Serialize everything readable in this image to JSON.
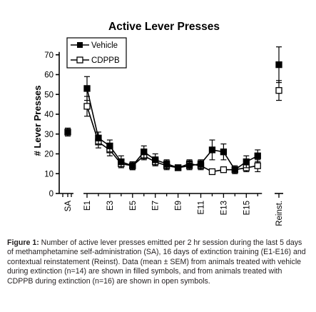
{
  "chart_data": {
    "type": "line",
    "title": "Active Lever Presses",
    "ylabel": "# Lever Presses",
    "xlabel": "",
    "ylim": [
      0,
      70
    ],
    "yticks": [
      0,
      10,
      20,
      30,
      40,
      50,
      60,
      70
    ],
    "xtick_labels": [
      "SA",
      "E1",
      "E3",
      "E5",
      "E7",
      "E9",
      "E11",
      "E13",
      "E15",
      "Reinst."
    ],
    "error_bars": "mean ± SEM",
    "legend_position": "top-left",
    "sa": {
      "vehicle": {
        "mean": 31,
        "sem": 2
      }
    },
    "extinction_sessions": [
      "E1",
      "E2",
      "E3",
      "E4",
      "E5",
      "E6",
      "E7",
      "E8",
      "E9",
      "E10",
      "E11",
      "E12",
      "E13",
      "E14",
      "E15",
      "E16"
    ],
    "series": [
      {
        "name": "Vehicle",
        "marker": "filled-square",
        "extinction_mean": [
          53,
          28,
          24,
          16,
          14,
          21,
          17,
          15,
          13,
          14,
          15,
          22,
          21,
          12,
          16,
          19
        ],
        "extinction_sem": [
          6,
          3,
          3,
          3,
          2,
          3,
          3,
          2,
          1,
          2,
          2,
          5,
          4,
          2,
          3,
          3
        ],
        "reinstatement_mean": 65,
        "reinstatement_sem": 9
      },
      {
        "name": "CDPPB",
        "marker": "open-square",
        "extinction_mean": [
          44,
          26,
          22,
          15,
          14,
          19,
          16,
          14,
          13,
          15,
          14,
          11,
          12,
          12,
          13,
          14
        ],
        "extinction_sem": [
          5,
          3,
          3,
          2,
          2,
          2,
          2,
          2,
          1,
          2,
          2,
          1,
          1,
          1,
          2,
          3
        ],
        "reinstatement_mean": 52,
        "reinstatement_sem": 5
      }
    ]
  },
  "caption": {
    "label": "Figure 1:",
    "text": " Number of active lever presses emitted per 2 hr session during the last 5 days of methamphetamine self-administration (SA), 16 days of extinction training (E1-E16) and contextual reinstatement (Reinst). Data (mean ± SEM) from animals treated with vehicle during extinction (n=14) are shown in filled symbols, and from animals treated with CDPPB during extinction (n=16) are shown in open symbols."
  }
}
